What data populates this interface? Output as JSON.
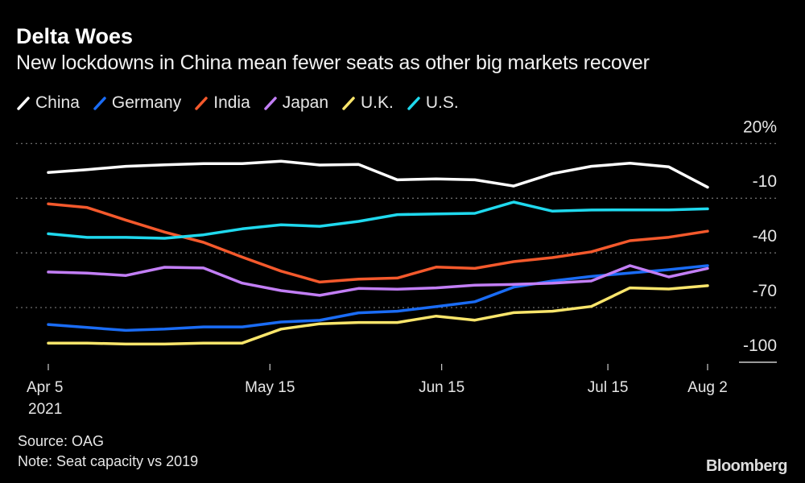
{
  "title": "Delta Woes",
  "subtitle": "New lockdowns in China mean fewer seats as other big markets recover",
  "source": "Source: OAG",
  "note": "Note: Seat capacity vs 2019",
  "brand": "Bloomberg",
  "chart_data": {
    "type": "line",
    "title": "Delta Woes",
    "subtitle": "New lockdowns in China mean fewer seats as other big markets recover",
    "x": [
      "2021-04-05",
      "2021-04-12",
      "2021-04-19",
      "2021-04-26",
      "2021-05-03",
      "2021-05-10",
      "2021-05-17",
      "2021-05-24",
      "2021-05-31",
      "2021-06-07",
      "2021-06-14",
      "2021-06-21",
      "2021-06-28",
      "2021-07-05",
      "2021-07-12",
      "2021-07-19",
      "2021-07-26",
      "2021-08-02"
    ],
    "x_ticks": [
      {
        "date": "2021-04-05",
        "label": "Apr 5",
        "sublabel": "2021"
      },
      {
        "date": "2021-05-15",
        "label": "May 15"
      },
      {
        "date": "2021-06-15",
        "label": "Jun 15"
      },
      {
        "date": "2021-07-15",
        "label": "Jul 15"
      },
      {
        "date": "2021-08-02",
        "label": "Aug 2"
      }
    ],
    "y_ticks": [
      {
        "value": 20,
        "label": "20%"
      },
      {
        "value": -10,
        "label": "-10"
      },
      {
        "value": -40,
        "label": "-40"
      },
      {
        "value": -70,
        "label": "-70"
      },
      {
        "value": -100,
        "label": "-100"
      }
    ],
    "ylim": [
      -100,
      20
    ],
    "grid": true,
    "legend_position": "top-left",
    "series": [
      {
        "name": "China",
        "color": "#ffffff",
        "values": [
          4.1,
          5.7,
          7.5,
          8.3,
          9.0,
          9.0,
          10.3,
          8.2,
          8.5,
          0.1,
          0.6,
          0.1,
          -3.3,
          3.5,
          7.5,
          9.2,
          7.2,
          -4.0
        ]
      },
      {
        "name": "Germany",
        "color": "#1a6cf5",
        "values": [
          -79.3,
          -80.9,
          -82.5,
          -81.8,
          -80.6,
          -80.6,
          -77.9,
          -77.0,
          -72.9,
          -72.0,
          -69.5,
          -66.8,
          -58.8,
          -55.4,
          -52.9,
          -51.0,
          -49.2,
          -47.0
        ]
      },
      {
        "name": "India",
        "color": "#f4592c",
        "values": [
          -13.1,
          -15.1,
          -22.0,
          -28.6,
          -34.2,
          -42.3,
          -50.0,
          -56.0,
          -54.4,
          -53.8,
          -47.8,
          -48.5,
          -44.8,
          -42.6,
          -39.4,
          -33.3,
          -31.4,
          -28.1
        ]
      },
      {
        "name": "Japan",
        "color": "#c27ef5",
        "values": [
          -50.5,
          -51.1,
          -52.4,
          -47.9,
          -48.3,
          -56.6,
          -60.7,
          -63.3,
          -59.5,
          -59.9,
          -59.2,
          -57.7,
          -57.3,
          -56.6,
          -55.4,
          -47.0,
          -53.2,
          -48.5
        ]
      },
      {
        "name": "U.K.",
        "color": "#f9e56b",
        "values": [
          -89.5,
          -89.5,
          -90.0,
          -90.0,
          -89.5,
          -89.5,
          -81.8,
          -78.9,
          -78.2,
          -78.2,
          -74.7,
          -76.9,
          -72.8,
          -72.0,
          -69.4,
          -59.2,
          -59.8,
          -58.0
        ]
      },
      {
        "name": "U.S.",
        "color": "#1fd9ee",
        "values": [
          -29.5,
          -31.5,
          -31.5,
          -32.0,
          -30.1,
          -26.8,
          -24.6,
          -25.4,
          -22.7,
          -19.0,
          -18.6,
          -18.3,
          -12.1,
          -17.1,
          -16.5,
          -16.4,
          -16.4,
          -15.8
        ]
      }
    ]
  }
}
